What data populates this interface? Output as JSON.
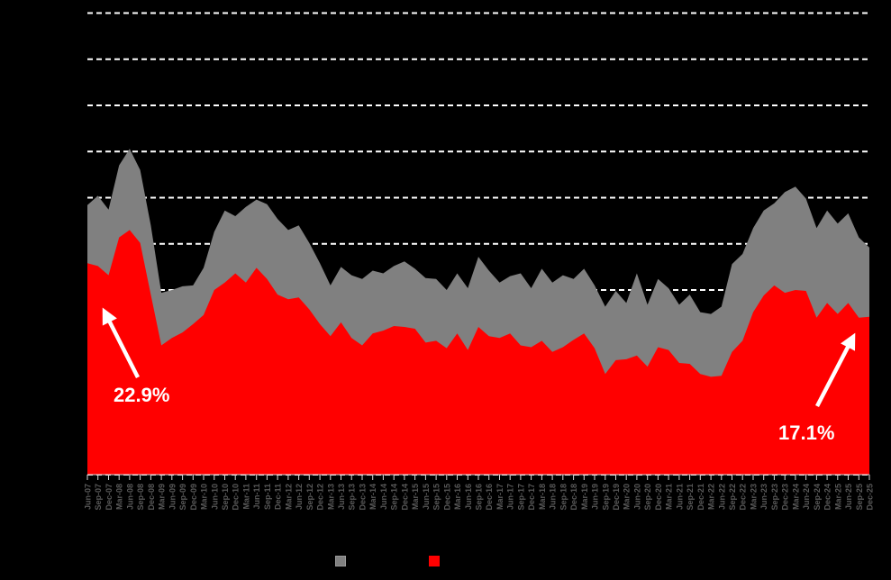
{
  "chart_data": {
    "type": "area",
    "title": "",
    "x_tick_labels": [
      "Jun-07",
      "Sep-07",
      "Dec-07",
      "Mar-08",
      "Jun-08",
      "Sep-08",
      "Dec-08",
      "Mar-09",
      "Jun-09",
      "Sep-09",
      "Dec-09",
      "Mar-10",
      "Jun-10",
      "Sep-10",
      "Dec-10",
      "Mar-11",
      "Jun-11",
      "Sep-11",
      "Dec-11",
      "Mar-12",
      "Jun-12",
      "Sep-12",
      "Dec-12",
      "Mar-13",
      "Jun-13",
      "Sep-13",
      "Dec-13",
      "Mar-14",
      "Jun-14",
      "Sep-14",
      "Dec-14",
      "Mar-15",
      "Jun-15",
      "Sep-15",
      "Dec-15",
      "Mar-16",
      "Jun-16",
      "Sep-16",
      "Dec-16",
      "Mar-17",
      "Jun-17",
      "Sep-17",
      "Dec-17",
      "Mar-18",
      "Jun-18",
      "Sep-18",
      "Dec-18",
      "Mar-19",
      "Jun-19",
      "Sep-19",
      "Dec-19",
      "Mar-20",
      "Jun-20",
      "Sep-20",
      "Dec-20",
      "Mar-21",
      "Jun-21",
      "Sep-21",
      "Dec-21",
      "Mar-22",
      "Jun-22",
      "Sep-22",
      "Dec-22",
      "Mar-23",
      "Jun-23",
      "Sep-23",
      "Dec-23",
      "Mar-24",
      "Jun-24",
      "Sep-24",
      "Dec-24",
      "Mar-25",
      "Jun-25",
      "Sep-25",
      "Dec-25"
    ],
    "series": [
      {
        "name": "",
        "fill": "#808080",
        "values": [
          29.2,
          30.2,
          28.7,
          33.5,
          35.3,
          33.0,
          27.0,
          19.7,
          20.0,
          20.4,
          20.5,
          22.4,
          26.3,
          28.6,
          28.0,
          29.0,
          29.8,
          29.3,
          27.7,
          26.5,
          27.0,
          25.1,
          22.9,
          20.5,
          22.5,
          21.6,
          21.2,
          22.1,
          21.8,
          22.6,
          23.1,
          22.3,
          21.3,
          21.2,
          20.0,
          21.8,
          20.2,
          23.6,
          22.1,
          20.8,
          21.5,
          21.8,
          20.2,
          22.3,
          20.8,
          21.6,
          21.2,
          22.3,
          20.5,
          18.2,
          19.9,
          18.6,
          21.8,
          18.4,
          21.2,
          20.2,
          18.4,
          19.5,
          17.6,
          17.4,
          18.2,
          22.8,
          23.9,
          26.7,
          28.6,
          29.4,
          30.6,
          31.2,
          29.9,
          26.7,
          28.6,
          27.2,
          28.3,
          25.7,
          24.6
        ]
      },
      {
        "name": "",
        "fill": "#ff0000",
        "values": [
          22.9,
          22.6,
          21.6,
          25.7,
          26.5,
          25.1,
          19.5,
          14.0,
          14.8,
          15.4,
          16.3,
          17.3,
          20.0,
          20.8,
          21.8,
          20.8,
          22.4,
          21.2,
          19.5,
          19.0,
          19.2,
          17.9,
          16.3,
          15.0,
          16.5,
          14.8,
          14.0,
          15.3,
          15.6,
          16.1,
          16.0,
          15.8,
          14.3,
          14.5,
          13.7,
          15.3,
          13.5,
          16.0,
          15.0,
          14.8,
          15.3,
          14.0,
          13.8,
          14.5,
          13.3,
          13.8,
          14.6,
          15.3,
          13.7,
          10.9,
          12.4,
          12.5,
          12.9,
          11.7,
          13.8,
          13.5,
          12.1,
          12.0,
          10.9,
          10.6,
          10.7,
          13.3,
          14.5,
          17.6,
          19.4,
          20.5,
          19.7,
          20.0,
          19.9,
          17.0,
          18.6,
          17.4,
          18.6,
          17.0,
          17.1
        ]
      }
    ],
    "ylim": [
      0,
      50
    ],
    "y_gridline_step": 5,
    "y_tick_labels_visible": false,
    "grid": "horizontal-dashed",
    "legend_position": "bottom-center",
    "legend_labels_visible": false
  },
  "annotations": {
    "left": {
      "text": "22.9%"
    },
    "right": {
      "text": "17.1%"
    }
  },
  "colors": {
    "background": "#000000",
    "gridline": "#ffffff",
    "series_gray": "#808080",
    "series_red": "#ff0000",
    "axis_label": "#595959",
    "tick": "#d9d9d9",
    "annotation": "#ffffff"
  }
}
